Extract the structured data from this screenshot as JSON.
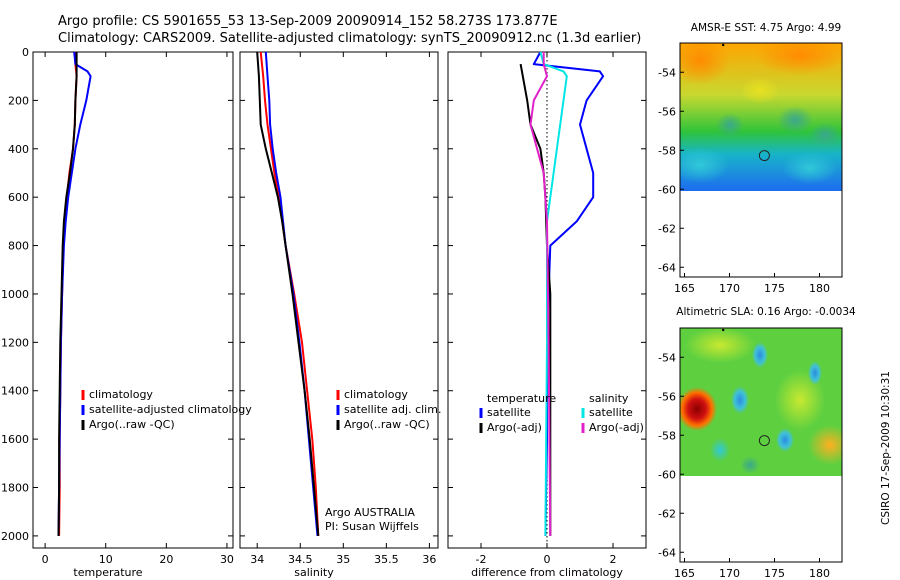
{
  "header": {
    "line1": "Argo profile: CS 5901655_53 13-Sep-2009 20090914_152 58.273S 173.877E",
    "line2": "Climatology: CARS2009. Satellite-adjusted climatology: synTS_20090912.nc (1.3d earlier)"
  },
  "side_label": "CSIRO 17-Sep-2009 10:30:31",
  "colors": {
    "climatology": "#ff0000",
    "satellite": "#0000ff",
    "argo": "#000000",
    "salinity_satellite": "#00e5e5",
    "salinity_argo": "#e020c8",
    "float_marker": "#222222"
  },
  "chart_data": [
    {
      "type": "line",
      "name": "temperature",
      "xlabel": "temperature",
      "ylabel": "",
      "xlim": [
        -2,
        31
      ],
      "ylim": [
        2050,
        0
      ],
      "xticks": [
        0,
        10,
        20,
        30
      ],
      "yticks": [
        0,
        200,
        400,
        600,
        800,
        1000,
        1200,
        1400,
        1600,
        1800,
        2000
      ],
      "legend": [
        "climatology",
        "satellite-adjusted climatology",
        "Argo(..raw -QC)"
      ],
      "series": [
        {
          "name": "climatology",
          "color": "#ff0000",
          "points": [
            [
              5.0,
              0
            ],
            [
              5.0,
              50
            ],
            [
              5.2,
              100
            ],
            [
              5.0,
              200
            ],
            [
              4.9,
              300
            ],
            [
              4.6,
              400
            ],
            [
              4.0,
              500
            ],
            [
              3.6,
              600
            ],
            [
              3.3,
              700
            ],
            [
              3.0,
              800
            ],
            [
              2.8,
              1000
            ],
            [
              2.6,
              1200
            ],
            [
              2.5,
              1400
            ],
            [
              2.4,
              1600
            ],
            [
              2.4,
              1800
            ],
            [
              2.3,
              2000
            ]
          ]
        },
        {
          "name": "satellite-adjusted climatology",
          "color": "#0000ff",
          "points": [
            [
              4.8,
              0
            ],
            [
              5.0,
              50
            ],
            [
              7.0,
              80
            ],
            [
              7.5,
              100
            ],
            [
              6.8,
              200
            ],
            [
              5.8,
              300
            ],
            [
              5.0,
              400
            ],
            [
              4.4,
              500
            ],
            [
              3.8,
              600
            ],
            [
              3.4,
              700
            ],
            [
              3.1,
              800
            ],
            [
              2.8,
              1000
            ],
            [
              2.6,
              1200
            ],
            [
              2.5,
              1400
            ],
            [
              2.4,
              1600
            ],
            [
              2.3,
              1800
            ],
            [
              2.2,
              2000
            ]
          ]
        },
        {
          "name": "Argo(..raw -QC)",
          "color": "#000000",
          "points": [
            [
              5.2,
              0
            ],
            [
              5.2,
              100
            ],
            [
              5.0,
              200
            ],
            [
              4.9,
              300
            ],
            [
              4.6,
              400
            ],
            [
              4.1,
              500
            ],
            [
              3.5,
              600
            ],
            [
              3.1,
              700
            ],
            [
              2.9,
              800
            ],
            [
              2.7,
              1000
            ],
            [
              2.5,
              1200
            ],
            [
              2.4,
              1400
            ],
            [
              2.3,
              1600
            ],
            [
              2.3,
              1800
            ],
            [
              2.2,
              2000
            ]
          ]
        }
      ]
    },
    {
      "type": "line",
      "name": "salinity",
      "xlabel": "salinity",
      "ylabel": "",
      "xlim": [
        33.8,
        36.1
      ],
      "ylim": [
        2050,
        0
      ],
      "xticks": [
        34,
        34.5,
        35,
        35.5,
        36
      ],
      "xtick_labels": [
        "34",
        "34.5",
        "35",
        "35.5",
        "36"
      ],
      "legend": [
        "climatology",
        "satellite adj. clim.",
        "Argo(..raw -QC)"
      ],
      "annotation": [
        "Argo AUSTRALIA",
        "PI: Susan Wijffels"
      ],
      "series": [
        {
          "name": "climatology",
          "color": "#ff0000",
          "points": [
            [
              34.04,
              0
            ],
            [
              34.07,
              100
            ],
            [
              34.09,
              200
            ],
            [
              34.12,
              300
            ],
            [
              34.16,
              400
            ],
            [
              34.2,
              500
            ],
            [
              34.25,
              600
            ],
            [
              34.29,
              700
            ],
            [
              34.33,
              800
            ],
            [
              34.43,
              1000
            ],
            [
              34.52,
              1200
            ],
            [
              34.58,
              1400
            ],
            [
              34.64,
              1600
            ],
            [
              34.68,
              1800
            ],
            [
              34.71,
              2000
            ]
          ]
        },
        {
          "name": "satellite adj. clim.",
          "color": "#0000ff",
          "points": [
            [
              34.1,
              0
            ],
            [
              34.12,
              100
            ],
            [
              34.14,
              200
            ],
            [
              34.15,
              300
            ],
            [
              34.18,
              400
            ],
            [
              34.22,
              500
            ],
            [
              34.27,
              600
            ],
            [
              34.3,
              700
            ],
            [
              34.33,
              800
            ],
            [
              34.42,
              1000
            ],
            [
              34.49,
              1200
            ],
            [
              34.55,
              1400
            ],
            [
              34.6,
              1600
            ],
            [
              34.65,
              1800
            ],
            [
              34.7,
              2000
            ]
          ]
        },
        {
          "name": "Argo(..raw -QC)",
          "color": "#000000",
          "points": [
            [
              34.0,
              0
            ],
            [
              34.02,
              100
            ],
            [
              34.03,
              200
            ],
            [
              34.04,
              300
            ],
            [
              34.1,
              400
            ],
            [
              34.17,
              500
            ],
            [
              34.24,
              600
            ],
            [
              34.29,
              700
            ],
            [
              34.33,
              800
            ],
            [
              34.41,
              1000
            ],
            [
              34.48,
              1200
            ],
            [
              34.55,
              1400
            ],
            [
              34.61,
              1600
            ],
            [
              34.66,
              1800
            ],
            [
              34.71,
              2000
            ]
          ]
        }
      ]
    },
    {
      "type": "line",
      "name": "difference",
      "xlabel": "difference from climatology",
      "ylabel": "",
      "xlim": [
        -3,
        3
      ],
      "ylim": [
        2050,
        0
      ],
      "xticks": [
        -2,
        0,
        2
      ],
      "legend_headers": [
        "temperature",
        "salinity"
      ],
      "legend": [
        "satellite",
        "Argo(-adj)",
        "satellite",
        "Argo(-adj)"
      ],
      "series": [
        {
          "name": "satellite",
          "group": "temperature",
          "color": "#0000ff",
          "points": [
            [
              -0.2,
              0
            ],
            [
              -0.4,
              50
            ],
            [
              1.6,
              80
            ],
            [
              1.7,
              100
            ],
            [
              1.2,
              200
            ],
            [
              1.0,
              300
            ],
            [
              1.2,
              400
            ],
            [
              1.4,
              500
            ],
            [
              1.4,
              600
            ],
            [
              0.9,
              700
            ],
            [
              0.1,
              800
            ],
            [
              0.05,
              1000
            ],
            [
              0.0,
              1200
            ],
            [
              0.0,
              1600
            ],
            [
              -0.05,
              2000
            ]
          ]
        },
        {
          "name": "Argo(-adj)",
          "group": "temperature",
          "color": "#000000",
          "points": [
            [
              -0.8,
              50
            ],
            [
              -0.6,
              200
            ],
            [
              -0.5,
              300
            ],
            [
              -0.2,
              400
            ],
            [
              -0.1,
              500
            ],
            [
              -0.05,
              600
            ],
            [
              0.0,
              800
            ],
            [
              0.1,
              1000
            ],
            [
              0.1,
              1200
            ],
            [
              0.1,
              1600
            ],
            [
              0.1,
              2000
            ]
          ]
        },
        {
          "name": "satellite",
          "group": "salinity",
          "color": "#00e5e5",
          "points": [
            [
              -0.2,
              0
            ],
            [
              -0.1,
              50
            ],
            [
              0.5,
              80
            ],
            [
              0.6,
              100
            ],
            [
              0.4,
              300
            ],
            [
              0.3,
              400
            ],
            [
              0.2,
              500
            ],
            [
              0.0,
              700
            ],
            [
              0.0,
              1200
            ],
            [
              -0.05,
              2000
            ]
          ]
        },
        {
          "name": "Argo(-adj)",
          "group": "salinity",
          "color": "#e020c8",
          "points": [
            [
              -0.1,
              0
            ],
            [
              -0.1,
              50
            ],
            [
              0.0,
              100
            ],
            [
              -0.4,
              200
            ],
            [
              -0.5,
              300
            ],
            [
              -0.3,
              400
            ],
            [
              -0.1,
              500
            ],
            [
              0.0,
              700
            ],
            [
              0.05,
              1200
            ],
            [
              0.1,
              2000
            ]
          ]
        }
      ]
    },
    {
      "type": "heatmap",
      "name": "sst-map",
      "title": "AMSR-E SST: 4.75 Argo: 4.99",
      "xlim": [
        164.5,
        182.5
      ],
      "ylim": [
        -64.5,
        -52.5
      ],
      "xticks": [
        165,
        170,
        175,
        180
      ],
      "yticks": [
        -54,
        -56,
        -58,
        -60,
        -62,
        -64
      ],
      "float_position": [
        173.877,
        -58.273
      ]
    },
    {
      "type": "heatmap",
      "name": "sla-map",
      "title": "Altimetric SLA: 0.16 Argo: -0.0034",
      "xlim": [
        164.5,
        182.5
      ],
      "ylim": [
        -64.5,
        -52.5
      ],
      "xticks": [
        165,
        170,
        175,
        180
      ],
      "yticks": [
        -54,
        -56,
        -58,
        -60,
        -62,
        -64
      ],
      "float_position": [
        173.877,
        -58.273
      ]
    }
  ]
}
